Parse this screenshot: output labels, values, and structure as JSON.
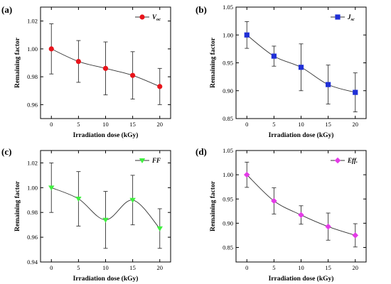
{
  "chart_data": [
    {
      "type": "line",
      "panel_label": "(a)",
      "xlabel": "Irradiation dose (kGy)",
      "ylabel": "Remaining factor",
      "x": [
        0,
        5,
        10,
        15,
        20
      ],
      "x_ticks": [
        "0",
        "5",
        "10",
        "15",
        "20"
      ],
      "xlim": [
        -2,
        22
      ],
      "ylim": [
        0.95,
        1.03
      ],
      "y_ticks": [
        "0.96",
        "0.98",
        "1.00",
        "1.02"
      ],
      "legend": {
        "main": "V",
        "sub": "oc",
        "placement": "top-right"
      },
      "series": [
        {
          "name": "Voc",
          "color": "#e8141b",
          "marker": "circle",
          "values": [
            1.0,
            0.991,
            0.986,
            0.981,
            0.973
          ],
          "errors": [
            0.018,
            0.015,
            0.019,
            0.017,
            0.013
          ]
        }
      ]
    },
    {
      "type": "line",
      "panel_label": "(b)",
      "xlabel": "Irradiation dose (kGy)",
      "ylabel": "Remaining factor",
      "x": [
        0,
        5,
        10,
        15,
        20
      ],
      "x_ticks": [
        "0",
        "5",
        "10",
        "15",
        "20"
      ],
      "xlim": [
        -2,
        22
      ],
      "ylim": [
        0.85,
        1.05
      ],
      "y_ticks": [
        "0.85",
        "0.90",
        "0.95",
        "1.00",
        "1.05"
      ],
      "legend": {
        "main": "J",
        "sub": "sc",
        "placement": "top-right"
      },
      "series": [
        {
          "name": "Jsc",
          "color": "#1f2fd6",
          "marker": "square",
          "values": [
            1.0,
            0.962,
            0.942,
            0.911,
            0.897
          ],
          "errors": [
            0.024,
            0.018,
            0.042,
            0.035,
            0.035
          ]
        }
      ]
    },
    {
      "type": "line",
      "panel_label": "(c)",
      "xlabel": "Irradiation dose (kGy)",
      "ylabel": "Remaining factor",
      "x": [
        0,
        5,
        10,
        15,
        20
      ],
      "x_ticks": [
        "0",
        "5",
        "10",
        "15",
        "20"
      ],
      "xlim": [
        -2,
        22
      ],
      "ylim": [
        0.94,
        1.03
      ],
      "y_ticks": [
        "0.94",
        "0.96",
        "0.98",
        "1.00",
        "1.02"
      ],
      "legend": {
        "main": "FF",
        "sub": "",
        "placement": "top-right"
      },
      "series": [
        {
          "name": "FF",
          "color": "#3ff03f",
          "marker": "triangle-down",
          "values": [
            1.0,
            0.991,
            0.974,
            0.99,
            0.967
          ],
          "errors": [
            0.02,
            0.022,
            0.023,
            0.02,
            0.016
          ]
        }
      ]
    },
    {
      "type": "line",
      "panel_label": "(d)",
      "xlabel": "Irradiation dose (kGy)",
      "ylabel": "Remaining factor",
      "x": [
        0,
        5,
        10,
        15,
        20
      ],
      "x_ticks": [
        "0",
        "5",
        "10",
        "15",
        "20"
      ],
      "xlim": [
        -2,
        22
      ],
      "ylim": [
        0.82,
        1.05
      ],
      "y_ticks": [
        "0.85",
        "0.90",
        "0.95",
        "1.00",
        "1.05"
      ],
      "legend": {
        "main": "Eff.",
        "sub": "",
        "placement": "top-right"
      },
      "series": [
        {
          "name": "Eff.",
          "color": "#e33be6",
          "marker": "diamond",
          "values": [
            1.0,
            0.946,
            0.917,
            0.893,
            0.875
          ],
          "errors": [
            0.026,
            0.027,
            0.019,
            0.028,
            0.024
          ]
        }
      ]
    }
  ]
}
